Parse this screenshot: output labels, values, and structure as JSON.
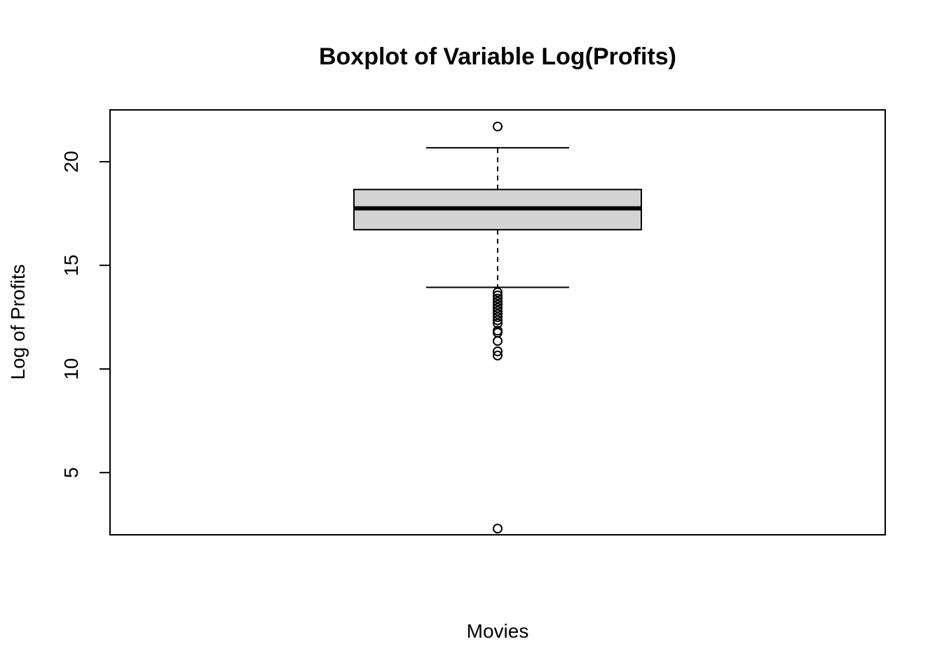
{
  "chart_data": {
    "type": "boxplot",
    "title": "Boxplot of Variable Log(Profits)",
    "xlabel": "Movies",
    "ylabel": "Log of Profits",
    "ylim": [
      2.0,
      22.5
    ],
    "yticks": [
      5,
      10,
      15,
      20
    ],
    "grid": false,
    "legend": "none",
    "box": {
      "q1": 16.72,
      "median": 17.75,
      "q3": 18.66,
      "whisker_low": 13.94,
      "whisker_high": 20.67,
      "fill_color": "#d3d3d3",
      "line_color": "#000000"
    },
    "outliers": [
      21.7,
      13.7,
      13.55,
      13.4,
      13.25,
      13.1,
      12.95,
      12.8,
      12.65,
      12.5,
      12.35,
      12.2,
      11.85,
      11.75,
      11.35,
      10.85,
      10.65,
      2.3
    ]
  }
}
